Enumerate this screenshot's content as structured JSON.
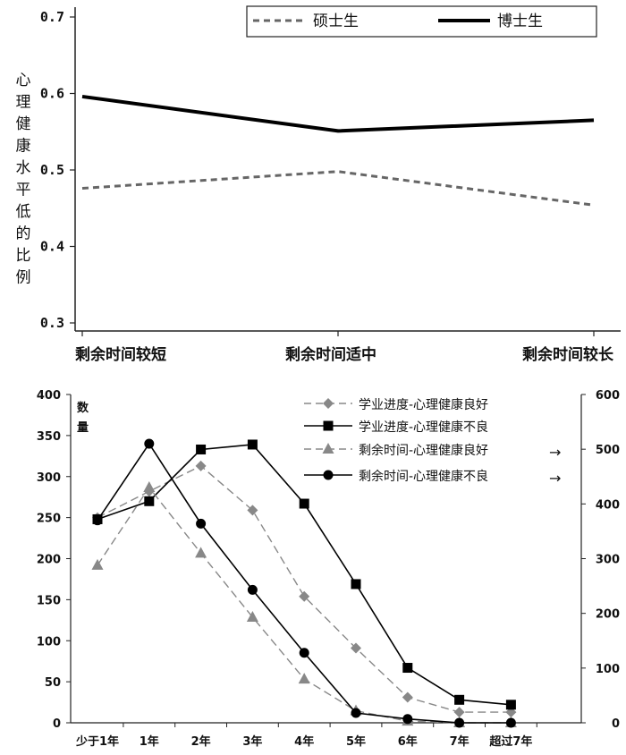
{
  "chart_data": [
    {
      "type": "line",
      "ylabel": "心理健康水平低的比例",
      "categories": [
        "剩余时间较短",
        "剩余时间适中",
        "剩余时间较长"
      ],
      "ylim": [
        0.3,
        0.7
      ],
      "yticks": [
        "0.3",
        "0.4",
        "0.5",
        "0.6",
        "0.7"
      ],
      "legend_position": "top-right",
      "series": [
        {
          "name": "硕士生",
          "values": [
            0.476,
            0.498,
            0.454
          ],
          "style": "dashed",
          "color": "#666666"
        },
        {
          "name": "博士生",
          "values": [
            0.596,
            0.551,
            0.565
          ],
          "style": "solid",
          "color": "#000000"
        }
      ]
    },
    {
      "type": "line",
      "ylabel": "数量",
      "categories": [
        "少于1年",
        "1年",
        "2年",
        "3年",
        "4年",
        "5年",
        "6年",
        "7年",
        "超过7年"
      ],
      "ylim": [
        0,
        400
      ],
      "yticks": [
        "0",
        "50",
        "100",
        "150",
        "200",
        "250",
        "300",
        "350",
        "400"
      ],
      "y2lim": [
        0,
        600
      ],
      "y2ticks": [
        "0",
        "100",
        "200",
        "300",
        "400",
        "500",
        "600"
      ],
      "legend_position": "top-right",
      "arrow": "→",
      "series": [
        {
          "name": "学业进度-心理健康良好",
          "axis": "left",
          "style": "dashed",
          "marker": "diamond",
          "color": "#888888",
          "values": [
            250,
            282,
            313,
            259,
            154,
            91,
            31,
            13,
            13
          ]
        },
        {
          "name": "学业进度-心理健康不良",
          "axis": "left",
          "style": "solid",
          "marker": "square",
          "color": "#000000",
          "values": [
            248,
            270,
            333,
            339,
            267,
            169,
            67,
            28,
            22
          ]
        },
        {
          "name": "剩余时间-心理健康良好",
          "axis": "right",
          "style": "dashed",
          "marker": "triangle",
          "color": "#888888",
          "values": [
            288,
            430,
            310,
            193,
            80,
            22,
            3,
            0,
            0
          ]
        },
        {
          "name": "剩余时间-心理健康不良",
          "axis": "right",
          "style": "solid",
          "marker": "circle",
          "color": "#000000",
          "values": [
            370,
            510,
            364,
            243,
            128,
            18,
            7,
            0,
            0
          ]
        }
      ]
    }
  ]
}
